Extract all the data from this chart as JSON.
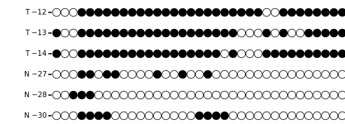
{
  "rows": [
    {
      "label": "T −12",
      "pattern": [
        0,
        0,
        0,
        1,
        1,
        1,
        1,
        1,
        1,
        1,
        1,
        1,
        1,
        1,
        1,
        1,
        1,
        1,
        1,
        1,
        1,
        1,
        1,
        1,
        1,
        0,
        0,
        1,
        1,
        1,
        1,
        1,
        1,
        1,
        1
      ]
    },
    {
      "label": "T −13",
      "pattern": [
        1,
        0,
        0,
        1,
        1,
        1,
        1,
        1,
        1,
        1,
        1,
        1,
        1,
        1,
        1,
        1,
        1,
        1,
        1,
        1,
        1,
        1,
        0,
        0,
        0,
        1,
        0,
        1,
        0,
        0,
        1,
        1,
        1,
        1,
        1
      ]
    },
    {
      "label": "T −14",
      "pattern": [
        1,
        0,
        0,
        1,
        1,
        1,
        1,
        1,
        1,
        1,
        1,
        1,
        1,
        1,
        1,
        1,
        1,
        1,
        1,
        1,
        0,
        1,
        0,
        0,
        0,
        1,
        1,
        1,
        1,
        1,
        1,
        1,
        1,
        1,
        1
      ]
    },
    {
      "label": "N −27",
      "pattern": [
        0,
        0,
        0,
        1,
        1,
        0,
        1,
        1,
        0,
        0,
        0,
        0,
        1,
        0,
        0,
        1,
        0,
        0,
        1,
        0,
        0,
        0,
        0,
        0,
        0,
        0,
        0,
        0,
        0,
        0,
        0,
        0,
        0,
        0,
        0
      ]
    },
    {
      "label": "N −28",
      "pattern": [
        0,
        0,
        1,
        1,
        1,
        0,
        0,
        0,
        0,
        0,
        0,
        0,
        0,
        0,
        0,
        0,
        0,
        0,
        0,
        0,
        0,
        0,
        0,
        0,
        0,
        0,
        0,
        0,
        0,
        0,
        0,
        0,
        0,
        0,
        0
      ]
    },
    {
      "label": "N −30",
      "pattern": [
        0,
        0,
        0,
        1,
        1,
        1,
        1,
        0,
        0,
        0,
        0,
        0,
        0,
        0,
        0,
        0,
        0,
        1,
        1,
        1,
        1,
        0,
        0,
        0,
        0,
        0,
        0,
        0,
        0,
        0,
        0,
        0,
        0,
        0,
        0
      ]
    }
  ],
  "n_circles": 35,
  "filled_color": "#000000",
  "open_color": "#ffffff",
  "edge_color": "#000000",
  "bg_color": "#ffffff",
  "label_fontsize": 7.5,
  "line_color": "#000000"
}
